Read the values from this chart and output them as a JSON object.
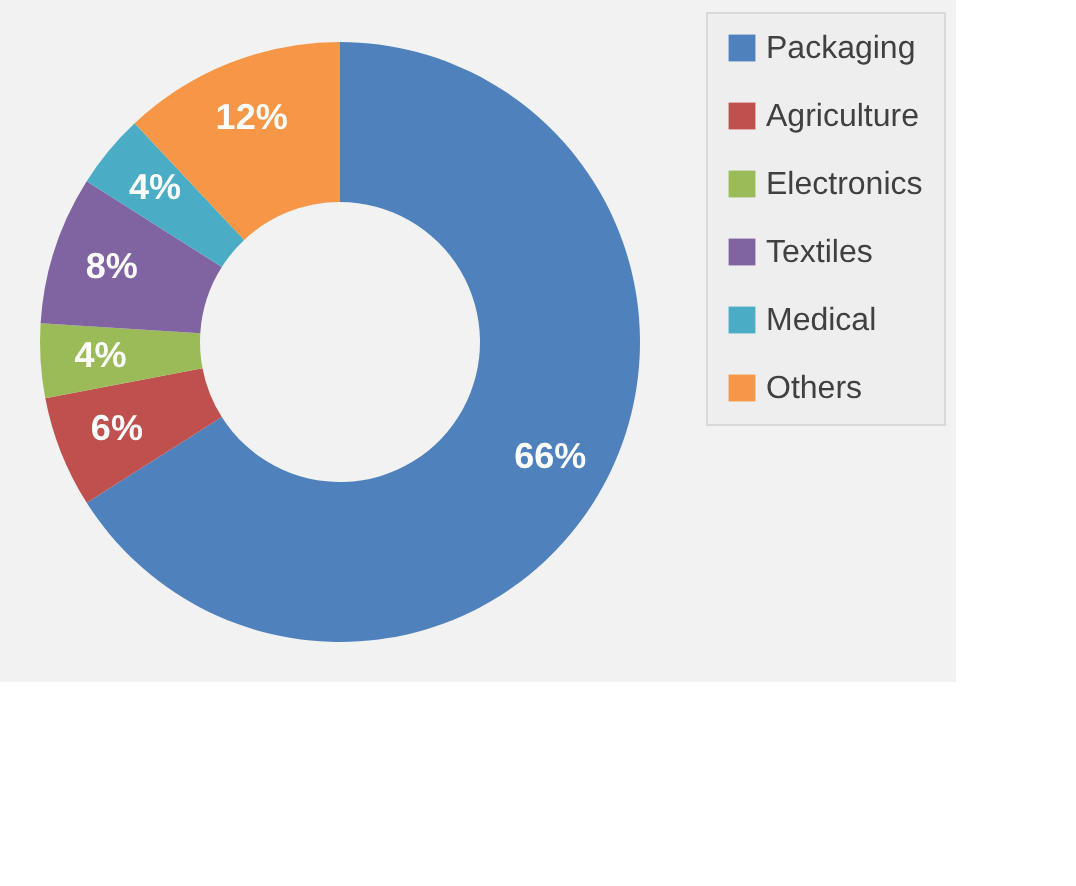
{
  "chart_data": {
    "type": "donut",
    "categories": [
      "Packaging",
      "Agriculture",
      "Electronics",
      "Textiles",
      "Medical",
      "Others"
    ],
    "values": [
      66,
      6,
      4,
      8,
      4,
      12
    ],
    "colors": [
      "#4f81bd",
      "#c0504d",
      "#9bbb59",
      "#8064a2",
      "#4bacc6",
      "#f79646"
    ],
    "value_labels": [
      "66%",
      "6%",
      "4%",
      "8%",
      "4%",
      "12%"
    ],
    "legend": "right"
  }
}
